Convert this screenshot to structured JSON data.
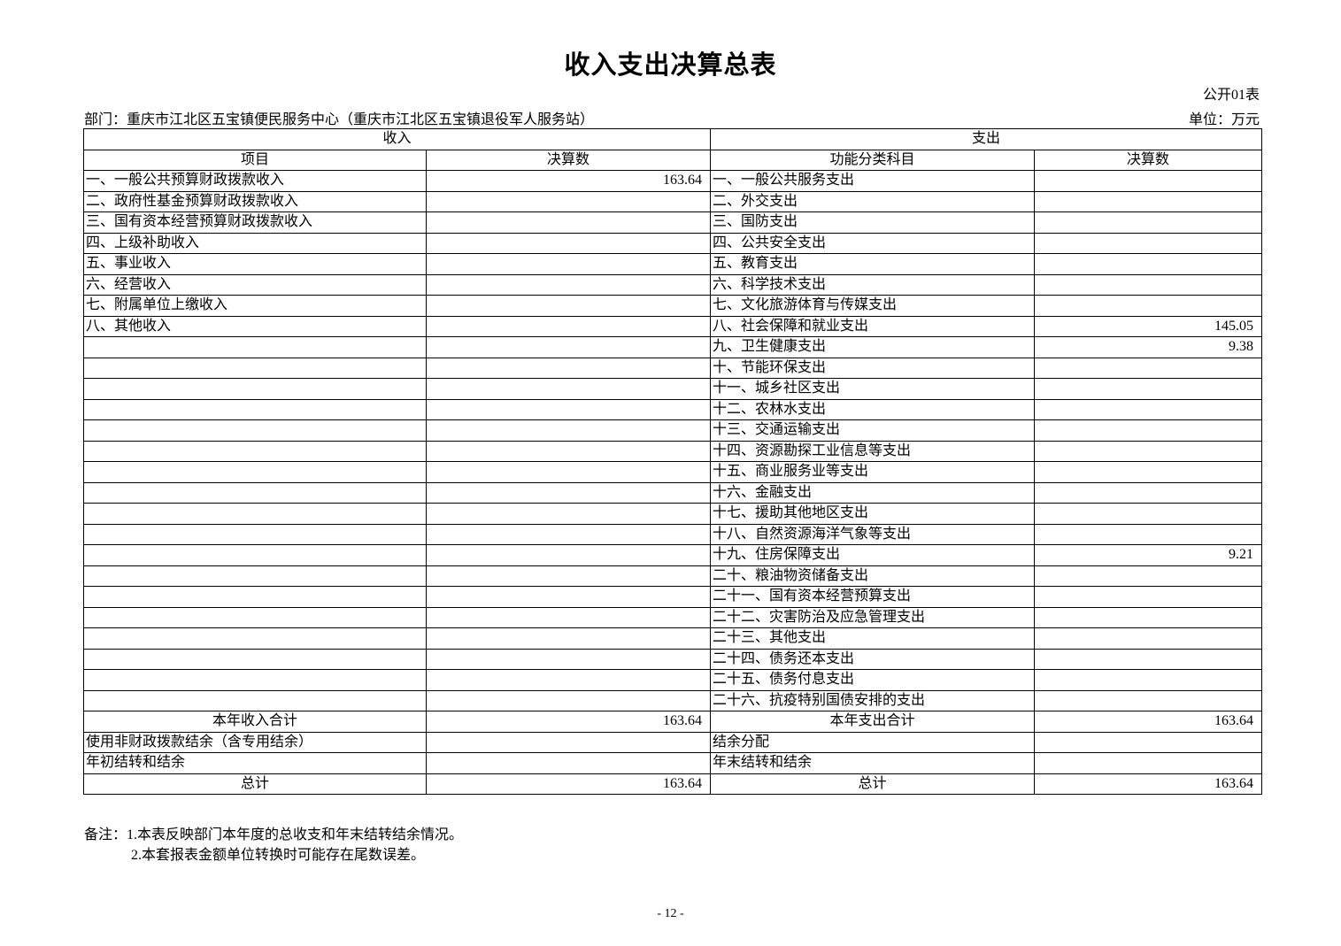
{
  "title": "收入支出决算总表",
  "table_no": "公开01表",
  "department": "部门：重庆市江北区五宝镇便民服务中心（重庆市江北区五宝镇退役军人服务站）",
  "unit": "单位：万元",
  "headers": {
    "income": "收入",
    "expense": "支出",
    "income_item": "项目",
    "income_amount": "决算数",
    "expense_item": "功能分类科目",
    "expense_amount": "决算数"
  },
  "rows": [
    {
      "income_item": "一、一般公共预算财政拨款收入",
      "income_amount": "163.64",
      "expense_item": "一、一般公共服务支出",
      "expense_amount": ""
    },
    {
      "income_item": "二、政府性基金预算财政拨款收入",
      "income_amount": "",
      "expense_item": "二、外交支出",
      "expense_amount": ""
    },
    {
      "income_item": "三、国有资本经营预算财政拨款收入",
      "income_amount": "",
      "expense_item": "三、国防支出",
      "expense_amount": ""
    },
    {
      "income_item": "四、上级补助收入",
      "income_amount": "",
      "expense_item": "四、公共安全支出",
      "expense_amount": ""
    },
    {
      "income_item": "五、事业收入",
      "income_amount": "",
      "expense_item": "五、教育支出",
      "expense_amount": ""
    },
    {
      "income_item": "六、经营收入",
      "income_amount": "",
      "expense_item": "六、科学技术支出",
      "expense_amount": ""
    },
    {
      "income_item": "七、附属单位上缴收入",
      "income_amount": "",
      "expense_item": "七、文化旅游体育与传媒支出",
      "expense_amount": ""
    },
    {
      "income_item": "八、其他收入",
      "income_amount": "",
      "expense_item": "八、社会保障和就业支出",
      "expense_amount": "145.05"
    },
    {
      "income_item": "",
      "income_amount": "",
      "expense_item": "九、卫生健康支出",
      "expense_amount": "9.38"
    },
    {
      "income_item": "",
      "income_amount": "",
      "expense_item": "十、节能环保支出",
      "expense_amount": ""
    },
    {
      "income_item": "",
      "income_amount": "",
      "expense_item": "十一、城乡社区支出",
      "expense_amount": ""
    },
    {
      "income_item": "",
      "income_amount": "",
      "expense_item": "十二、农林水支出",
      "expense_amount": ""
    },
    {
      "income_item": "",
      "income_amount": "",
      "expense_item": "十三、交通运输支出",
      "expense_amount": ""
    },
    {
      "income_item": "",
      "income_amount": "",
      "expense_item": "十四、资源勘探工业信息等支出",
      "expense_amount": ""
    },
    {
      "income_item": "",
      "income_amount": "",
      "expense_item": "十五、商业服务业等支出",
      "expense_amount": ""
    },
    {
      "income_item": "",
      "income_amount": "",
      "expense_item": "十六、金融支出",
      "expense_amount": ""
    },
    {
      "income_item": "",
      "income_amount": "",
      "expense_item": "十七、援助其他地区支出",
      "expense_amount": ""
    },
    {
      "income_item": "",
      "income_amount": "",
      "expense_item": "十八、自然资源海洋气象等支出",
      "expense_amount": ""
    },
    {
      "income_item": "",
      "income_amount": "",
      "expense_item": "十九、住房保障支出",
      "expense_amount": "9.21"
    },
    {
      "income_item": "",
      "income_amount": "",
      "expense_item": "二十、粮油物资储备支出",
      "expense_amount": ""
    },
    {
      "income_item": "",
      "income_amount": "",
      "expense_item": "二十一、国有资本经营预算支出",
      "expense_amount": ""
    },
    {
      "income_item": "",
      "income_amount": "",
      "expense_item": "二十二、灾害防治及应急管理支出",
      "expense_amount": ""
    },
    {
      "income_item": "",
      "income_amount": "",
      "expense_item": "二十三、其他支出",
      "expense_amount": ""
    },
    {
      "income_item": "",
      "income_amount": "",
      "expense_item": "二十四、债务还本支出",
      "expense_amount": ""
    },
    {
      "income_item": "",
      "income_amount": "",
      "expense_item": "二十五、债务付息支出",
      "expense_amount": ""
    },
    {
      "income_item": "",
      "income_amount": "",
      "expense_item": "二十六、抗疫特别国债安排的支出",
      "expense_amount": ""
    }
  ],
  "summary_rows": [
    {
      "income_item": "本年收入合计",
      "income_amount": "163.64",
      "expense_item": "本年支出合计",
      "expense_amount": "163.64",
      "centered": true
    },
    {
      "income_item": "使用非财政拨款结余（含专用结余）",
      "income_amount": "",
      "expense_item": "结余分配",
      "expense_amount": "",
      "centered": false
    },
    {
      "income_item": "年初结转和结余",
      "income_amount": "",
      "expense_item": "年末结转和结余",
      "expense_amount": "",
      "centered": false
    },
    {
      "income_item": "总计",
      "income_amount": "163.64",
      "expense_item": "总计",
      "expense_amount": "163.64",
      "centered": true
    }
  ],
  "notes": [
    "备注：1.本表反映部门本年度的总收支和年末结转结余情况。",
    "2.本套报表金额单位转换时可能存在尾数误差。"
  ],
  "page_number": "- 12 -"
}
